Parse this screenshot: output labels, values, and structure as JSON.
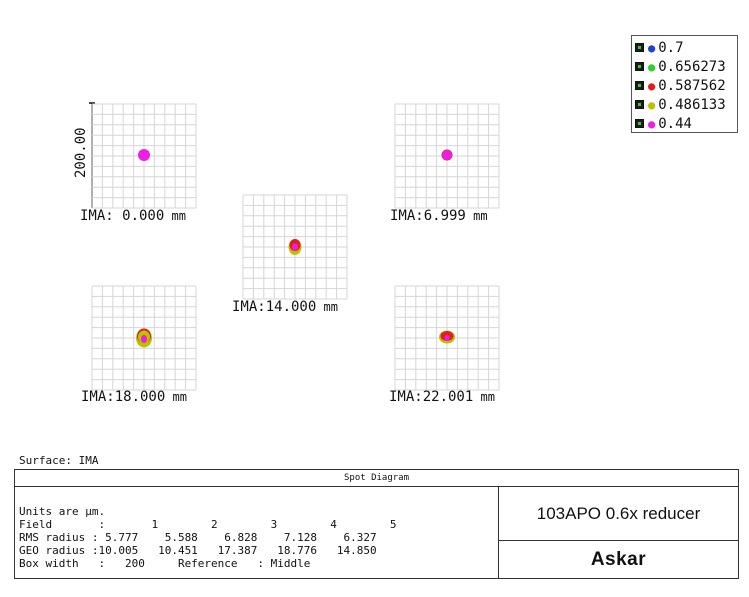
{
  "legend": {
    "items": [
      {
        "label": "0.7",
        "color": "#1f3fd6"
      },
      {
        "label": "0.656273",
        "color": "#2fd12f"
      },
      {
        "label": "0.587562",
        "color": "#e02020"
      },
      {
        "label": "0.486133",
        "color": "#b8c400"
      },
      {
        "label": "0.44",
        "color": "#ee1ee6"
      }
    ]
  },
  "scale_bar_label": "200.00",
  "fields": [
    {
      "prefix": "IMA:",
      "value": " 0.000",
      "unit": " mm",
      "spot_type": "round"
    },
    {
      "prefix": "IMA:",
      "value": "6.999",
      "unit": " mm",
      "spot_type": "round-small"
    },
    {
      "prefix": "IMA:",
      "value": "14.000",
      "unit": " mm",
      "spot_type": "drop"
    },
    {
      "prefix": "IMA:",
      "value": "18.000",
      "unit": " mm",
      "spot_type": "drop-large"
    },
    {
      "prefix": "IMA:",
      "value": "22.001",
      "unit": " mm",
      "spot_type": "oval"
    }
  ],
  "surface_label": "Surface: IMA",
  "info": {
    "title": "Spot Diagram",
    "units_line": "Units are µm.",
    "field_line": "Field       :       1        2        3        4        5",
    "rms_line": "RMS radius : 5.777    5.588    6.828    7.128    6.327",
    "geo_line": "GEO radius :10.005   10.451   17.387   18.776   14.850",
    "box_line": "Box width   :   200     Reference   : Middle",
    "design_name": "103APO 0.6x reducer",
    "brand": "Askar"
  }
}
